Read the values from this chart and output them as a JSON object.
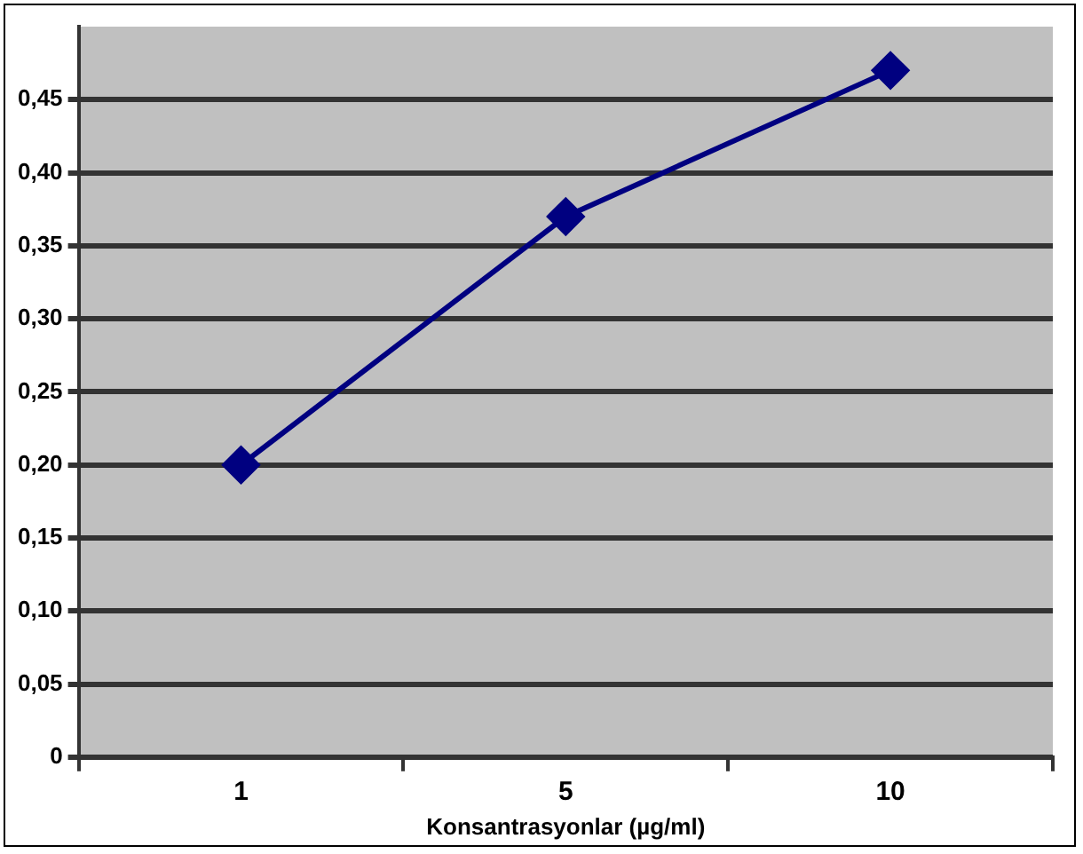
{
  "chart_data": {
    "type": "line",
    "xlabel": "Konsantrasyonlar (µg/ml)",
    "categories": [
      "1",
      "5",
      "10"
    ],
    "series": [
      {
        "color": "#000080",
        "values": [
          0.2,
          0.37,
          0.47
        ]
      }
    ],
    "ylim": [
      0,
      0.5
    ],
    "yticks": [
      0,
      {
        "value": 0.05,
        "label": "0,05"
      },
      {
        "value": 0.1,
        "label": "0,10"
      },
      {
        "value": 0.15,
        "label": "0,15"
      },
      {
        "value": 0.2,
        "label": "0,20"
      },
      {
        "value": 0.25,
        "label": "0,25"
      },
      {
        "value": 0.3,
        "label": "0,30"
      },
      {
        "value": 0.35,
        "label": "0,35"
      },
      {
        "value": 0.4,
        "label": "0,40"
      },
      {
        "value": 0.45,
        "label": "0,45"
      }
    ],
    "grid": "y",
    "legend": false,
    "marker": "diamond",
    "line_style": "solid"
  }
}
